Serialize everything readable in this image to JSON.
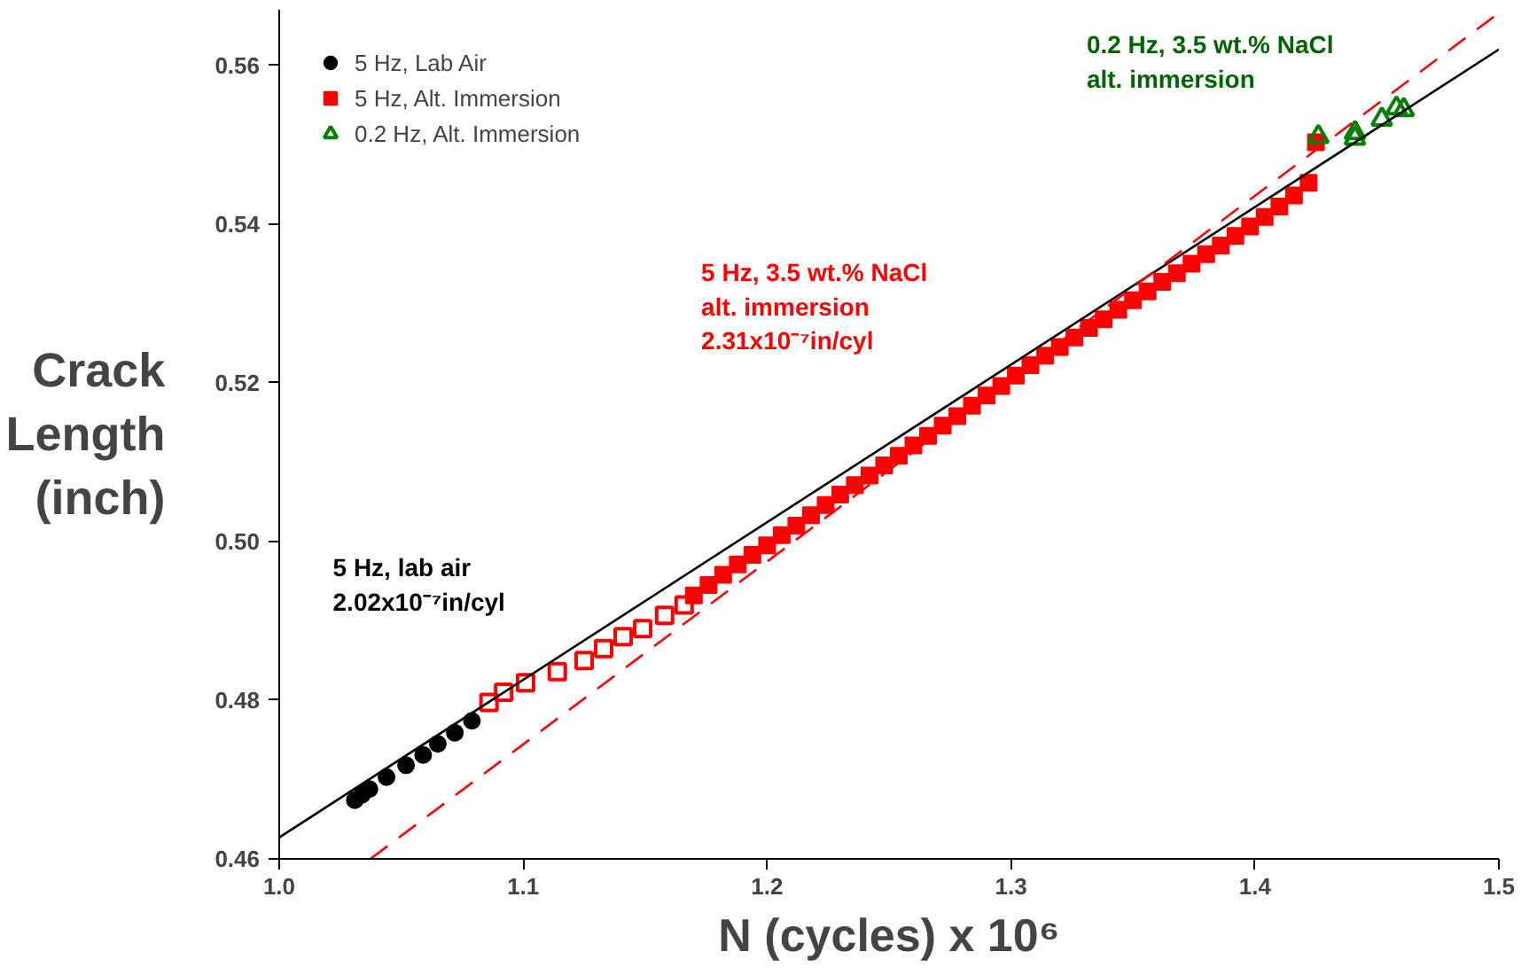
{
  "chart_data": {
    "type": "scatter",
    "xlabel": "N (cycles) x 10⁶",
    "ylabel": "Crack\nLength\n(inch)",
    "xlim": [
      1.0,
      1.5
    ],
    "ylim": [
      0.46,
      0.567
    ],
    "xticks": [
      {
        "value": 1.0,
        "label": "1.0"
      },
      1.1,
      1.2,
      1.3,
      1.4,
      1.5
    ],
    "yticks": [
      0.46,
      0.48,
      {
        "value": 0.5,
        "label": "0.50"
      },
      0.52,
      0.54,
      0.56
    ],
    "grid": false,
    "legend": "top left",
    "series": [
      {
        "name": "5 Hz, Lab Air",
        "color": "#000000",
        "marker": "circle",
        "x": [
          1.031,
          1.034,
          1.037,
          1.044,
          1.052,
          1.059,
          1.065,
          1.072,
          1.079
        ],
        "values": [
          0.4674,
          0.4681,
          0.4688,
          0.4703,
          0.4718,
          0.4731,
          0.4745,
          0.4759,
          0.4774
        ]
      },
      {
        "name": "5 Hz, Alt. Immersion",
        "color": "#ff0000",
        "marker": "square",
        "x": [
          1.17,
          1.176,
          1.182,
          1.188,
          1.194,
          1.2,
          1.206,
          1.212,
          1.218,
          1.224,
          1.23,
          1.236,
          1.242,
          1.248,
          1.254,
          1.26,
          1.266,
          1.272,
          1.278,
          1.284,
          1.29,
          1.296,
          1.302,
          1.308,
          1.314,
          1.32,
          1.326,
          1.332,
          1.338,
          1.344,
          1.35,
          1.356,
          1.362,
          1.368,
          1.374,
          1.38,
          1.386,
          1.392,
          1.398,
          1.404,
          1.41,
          1.416,
          1.422,
          1.425
        ],
        "values": [
          0.4932,
          0.4945,
          0.4958,
          0.4971,
          0.4983,
          0.4995,
          0.5008,
          0.502,
          0.5033,
          0.5046,
          0.5059,
          0.5071,
          0.5083,
          0.5096,
          0.5108,
          0.5121,
          0.5133,
          0.5146,
          0.5158,
          0.5171,
          0.5184,
          0.5196,
          0.5209,
          0.5222,
          0.5234,
          0.5245,
          0.5257,
          0.5269,
          0.528,
          0.5292,
          0.5304,
          0.5315,
          0.5327,
          0.5338,
          0.535,
          0.5362,
          0.5373,
          0.5385,
          0.5397,
          0.5409,
          0.5422,
          0.5436,
          0.5452,
          0.5503
        ]
      },
      {
        "color": "#ff0000",
        "marker": "square",
        "x": [
          1.086,
          1.092,
          1.101,
          1.114,
          1.125,
          1.133,
          1.141,
          1.149,
          1.158,
          1.166
        ],
        "values": [
          0.4797,
          0.481,
          0.4822,
          0.4836,
          0.485,
          0.4865,
          0.488,
          0.489,
          0.4907,
          0.492
        ]
      },
      {
        "name": "0.2 Hz, Alt. Immersion",
        "color": "#008000",
        "marker": "triangle",
        "x": [
          1.426,
          1.441,
          1.441,
          1.452,
          1.458,
          1.461
        ],
        "values": [
          0.551,
          0.5508,
          0.5515,
          0.5532,
          0.5546,
          0.5544
        ]
      },
      {
        "type": "line",
        "color": "#000000",
        "line_style": "solid",
        "x": [
          1.0,
          1.5
        ],
        "values": [
          0.4627,
          0.562
        ]
      },
      {
        "type": "line",
        "color": "#ff0000",
        "line_style": "dashed",
        "x": [
          1.0374,
          1.5
        ],
        "values": [
          0.46,
          0.5666
        ]
      }
    ],
    "annotations": [
      "5 Hz, lab air\n2.02x10⁻⁷in/cyl",
      "5 Hz, 3.5 wt.% NaCl\nalt. immersion\n2.31x10⁻⁷in/cyl",
      "0.2 Hz, 3.5 wt.% NaCl\nalt. immersion"
    ]
  }
}
